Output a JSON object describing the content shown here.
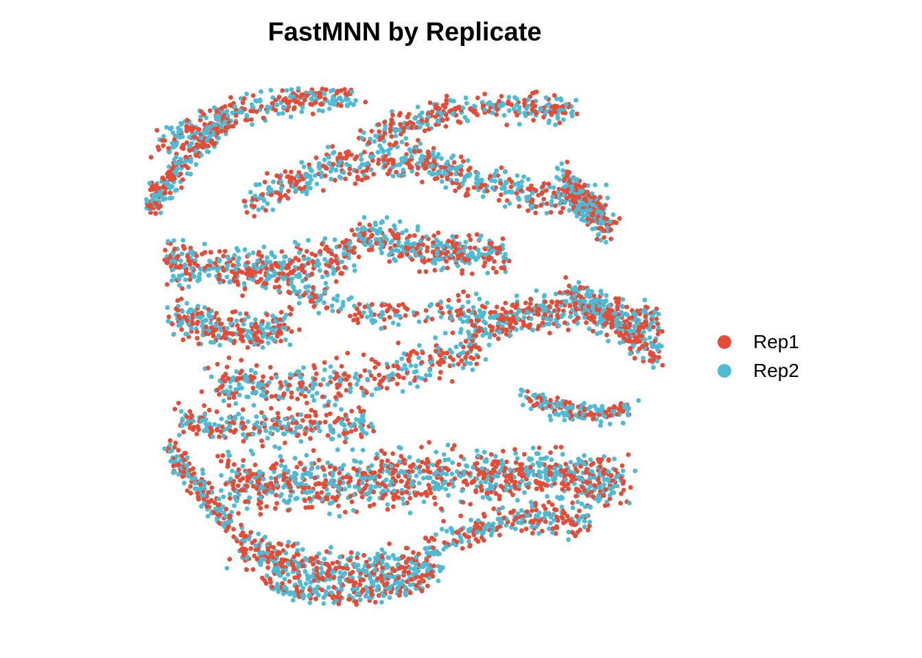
{
  "chart_data": {
    "type": "scatter",
    "title": "FastMNN by Replicate",
    "axes": "none",
    "grid": false,
    "legend_position": "right",
    "series": [
      {
        "name": "Rep1",
        "color": "#E64B35",
        "approx_points": 3200
      },
      {
        "name": "Rep2",
        "color": "#4DBBD5",
        "approx_points": 3200
      }
    ]
  }
}
